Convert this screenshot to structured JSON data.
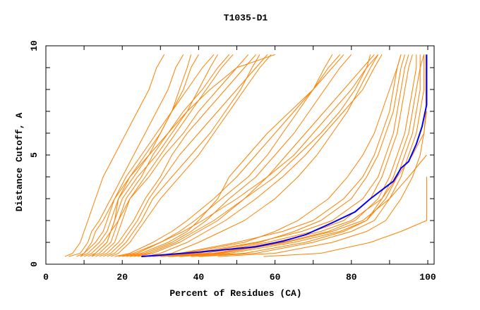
{
  "chart_data": {
    "type": "line",
    "title": "T1035-D1",
    "xlabel": "Percent of Residues (CA)",
    "ylabel": "Distance Cutoff, A",
    "xlim": [
      0,
      100
    ],
    "ylim": [
      0,
      10
    ],
    "x_ticks": [
      0,
      20,
      40,
      60,
      80,
      100
    ],
    "x_tick_labels": [
      "0",
      "20",
      "40",
      "60",
      "80",
      "100"
    ],
    "x_minor_step": 10,
    "y_ticks": [
      0,
      5,
      10
    ],
    "y_tick_labels": [
      "0",
      "5",
      "10"
    ],
    "y_minor_step": 1,
    "grid": false,
    "colors": {
      "models": "#ff8000",
      "highlight": "#0000ff",
      "frame": "#000000"
    },
    "model_y_levels": [
      0.35,
      0.5,
      1,
      1.5,
      2,
      3,
      4,
      5,
      6,
      7,
      8,
      9,
      9.6
    ],
    "model_series_x": [
      [
        5,
        7,
        9,
        10,
        11,
        13,
        15,
        18,
        21,
        24,
        27,
        29,
        31
      ],
      [
        6,
        9,
        11,
        12,
        14,
        17,
        20,
        23,
        26,
        29,
        32,
        34,
        36
      ],
      [
        8,
        10,
        13,
        15,
        16,
        18,
        21,
        25,
        29,
        33,
        37,
        41,
        44
      ],
      [
        9,
        11,
        14,
        16,
        17,
        19,
        22,
        26,
        30,
        33,
        36,
        38,
        40
      ],
      [
        10,
        12,
        15,
        17,
        19,
        22,
        26,
        30,
        34,
        38,
        42,
        46,
        49
      ],
      [
        11,
        13,
        16,
        17,
        18,
        20,
        24,
        29,
        33,
        37,
        40,
        43,
        45
      ],
      [
        12,
        14,
        17,
        18,
        19,
        21,
        25,
        28,
        32,
        36,
        41,
        45,
        48
      ],
      [
        13,
        15,
        18,
        19,
        20,
        22,
        27,
        31,
        36,
        40,
        45,
        50,
        53
      ],
      [
        14,
        16,
        19,
        21,
        23,
        26,
        30,
        33,
        37,
        42,
        47,
        52,
        55
      ],
      [
        15,
        17,
        20,
        22,
        24,
        27,
        31,
        35,
        40,
        45,
        50,
        55,
        58
      ],
      [
        16,
        18,
        21,
        23,
        25,
        28,
        33,
        38,
        43,
        47,
        51,
        54,
        56
      ],
      [
        9,
        10,
        12,
        13,
        15,
        18,
        22,
        27,
        32,
        37,
        43,
        50,
        60
      ],
      [
        12,
        13,
        16,
        17,
        18,
        19,
        23,
        27,
        30,
        33,
        35,
        37,
        38
      ],
      [
        17,
        19,
        22,
        24,
        26,
        30,
        35,
        40,
        44,
        48,
        52,
        56,
        59
      ],
      [
        18,
        22,
        28,
        33,
        37,
        44,
        50,
        55,
        60,
        65,
        70,
        75,
        78
      ],
      [
        20,
        24,
        30,
        35,
        39,
        46,
        53,
        58,
        62,
        66,
        70,
        73,
        75
      ],
      [
        22,
        26,
        33,
        38,
        42,
        48,
        55,
        60,
        65,
        69,
        73,
        77,
        80
      ],
      [
        24,
        28,
        35,
        40,
        45,
        52,
        58,
        63,
        68,
        73,
        78,
        83,
        86
      ],
      [
        19,
        23,
        30,
        36,
        41,
        50,
        58,
        65,
        70,
        75,
        80,
        84,
        87
      ],
      [
        26,
        30,
        37,
        42,
        47,
        55,
        62,
        68,
        73,
        78,
        83,
        86,
        88
      ],
      [
        21,
        25,
        32,
        37,
        40,
        45,
        48,
        53,
        58,
        64,
        70,
        74,
        77
      ],
      [
        28,
        33,
        40,
        46,
        52,
        60,
        66,
        71,
        75,
        79,
        82,
        85,
        87
      ],
      [
        23,
        27,
        34,
        39,
        44,
        52,
        60,
        66,
        72,
        77,
        81,
        84,
        85
      ],
      [
        25,
        35,
        50,
        62,
        70,
        78,
        83,
        86,
        88,
        90,
        91,
        92,
        93
      ],
      [
        27,
        38,
        55,
        67,
        75,
        83,
        87,
        89,
        91,
        92,
        93,
        94,
        95
      ],
      [
        30,
        42,
        58,
        70,
        78,
        85,
        88,
        90,
        92,
        93,
        94,
        95,
        96
      ],
      [
        33,
        45,
        62,
        74,
        81,
        87,
        90,
        92,
        94,
        95,
        96,
        97,
        97
      ],
      [
        35,
        48,
        65,
        77,
        84,
        89,
        92,
        94,
        96,
        97,
        98,
        98,
        98
      ],
      [
        28,
        40,
        56,
        65,
        72,
        80,
        84,
        87,
        89,
        91,
        92,
        93,
        94
      ],
      [
        38,
        52,
        68,
        78,
        84,
        88,
        91,
        93,
        95,
        96,
        97,
        98,
        99
      ],
      [
        26,
        36,
        52,
        60,
        66,
        74,
        79,
        83,
        86,
        88,
        90,
        92,
        93
      ],
      [
        40,
        55,
        70,
        80,
        86,
        90,
        93,
        95,
        97,
        98,
        99,
        99,
        99
      ],
      [
        45,
        60,
        75,
        84,
        89,
        93,
        96,
        98,
        99,
        99.5,
        99.5,
        99.5,
        99.5
      ],
      [
        30,
        44,
        60,
        72,
        80,
        88,
        92,
        96,
        99,
        99.7
      ],
      [
        32,
        46,
        63,
        75,
        83,
        90,
        95,
        99.7
      ],
      [
        57,
        72,
        85,
        93,
        99.7,
        99.7,
        99.7
      ]
    ],
    "highlight_series": {
      "x": [
        25,
        40,
        55,
        62,
        68,
        75,
        81,
        85,
        88,
        91,
        93,
        95,
        97,
        98.5,
        99.7,
        99.7
      ],
      "y": [
        0.35,
        0.55,
        0.8,
        1.05,
        1.35,
        1.9,
        2.4,
        3.0,
        3.4,
        3.8,
        4.4,
        4.7,
        5.5,
        6.3,
        7.3,
        9.6
      ]
    }
  }
}
